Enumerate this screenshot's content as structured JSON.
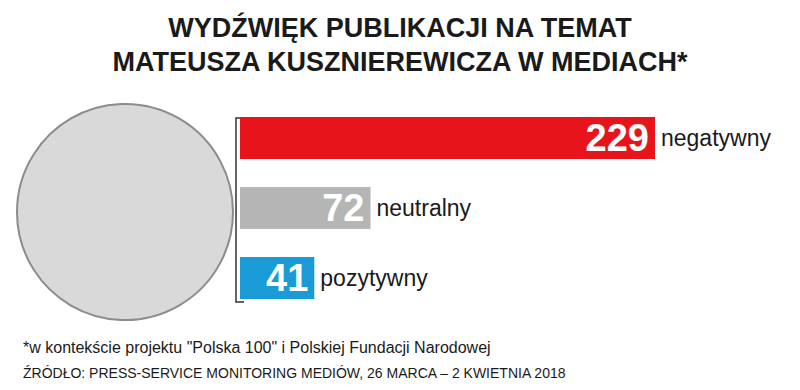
{
  "chart_data": {
    "type": "bar",
    "title": "WYDŹWIĘK PUBLIKACJI NA TEMAT\nMATEUSZA KUSZNIEREWICZA W MEDIACH*",
    "categories": [
      "negatywny",
      "neutralny",
      "pozytywny"
    ],
    "values": [
      229,
      72,
      41
    ],
    "colors": [
      "#e8141c",
      "#b5b5b5",
      "#1a9ad6"
    ],
    "orientation": "horizontal",
    "xlim": [
      0,
      229
    ],
    "data_labels": true,
    "tick_labels": false,
    "grid": false,
    "annotations": [
      "*w kontekście projektu \"Polska 100\" i Polskiej Fundacji Narodowej",
      "ŹRÓDŁO: PRESS-SERVICE MONITORING MEDIÓW, 26 MARCA – 2 KWIETNIA 2018"
    ]
  }
}
